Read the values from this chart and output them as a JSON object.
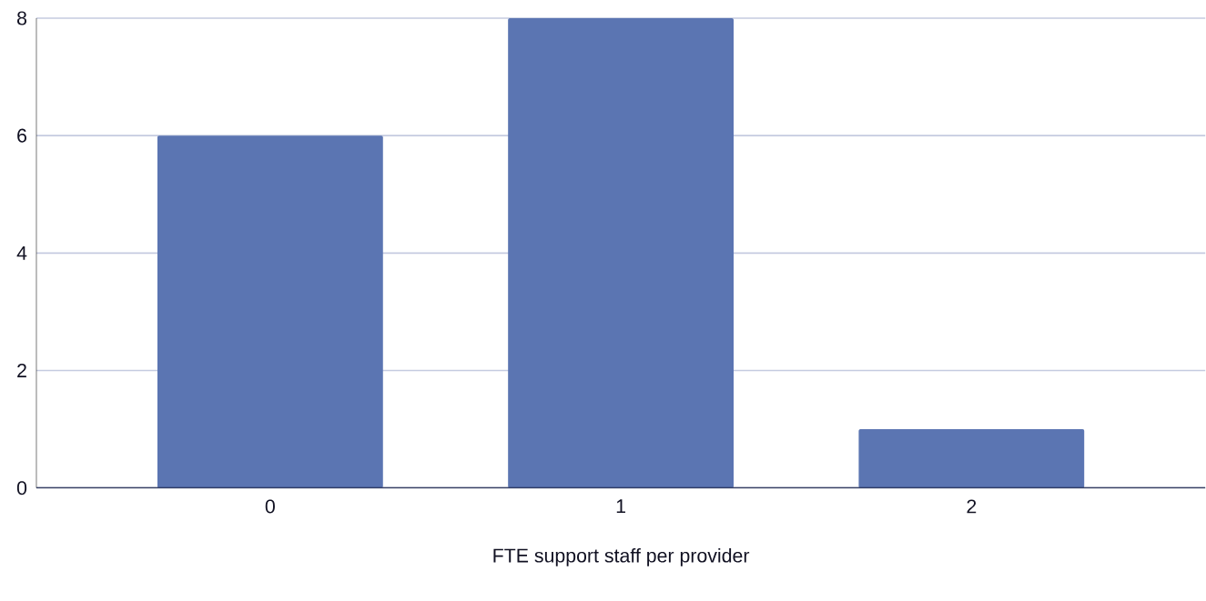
{
  "chart_data": {
    "type": "bar",
    "xlabel": "FTE support staff per provider",
    "categories": [
      "0",
      "1",
      "2"
    ],
    "values": [
      6,
      8,
      1
    ],
    "color": "#5b75b2",
    "ylim": [
      0,
      8
    ],
    "yticks": [
      0,
      2,
      4,
      6,
      8
    ],
    "grid": "y"
  }
}
